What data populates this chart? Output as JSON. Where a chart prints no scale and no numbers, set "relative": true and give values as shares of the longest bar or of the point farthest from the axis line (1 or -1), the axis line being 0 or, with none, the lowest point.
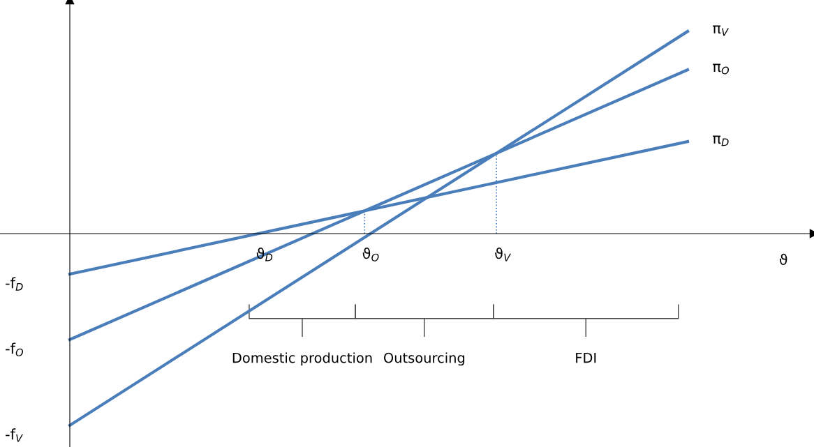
{
  "chart_data": {
    "type": "line",
    "relative": true,
    "categories": [
      null,
      null
    ],
    "series": [
      {
        "name": "π$_{D}$",
        "color": "#4a7ebb",
        "values": [
          -0.2,
          0.455
        ]
      },
      {
        "name": "π$_{O}$",
        "color": "#4a7ebb",
        "values": [
          -0.524,
          0.81
        ]
      },
      {
        "name": "π$_{V}$",
        "color": "#4a7ebb",
        "values": [
          -0.948,
          1
        ]
      }
    ],
    "annotations": [
      "-f$_{D}$",
      "-f$_{O}$",
      "-f$_{V}$",
      "ϑ$_{D}$",
      "ϑ$_{O}$",
      "ϑ$_{V}$",
      "ϑ",
      "Domestic production",
      "Outsourcing",
      "FDI"
    ],
    "legend": false,
    "marker": "none",
    "line_style": "solid"
  }
}
